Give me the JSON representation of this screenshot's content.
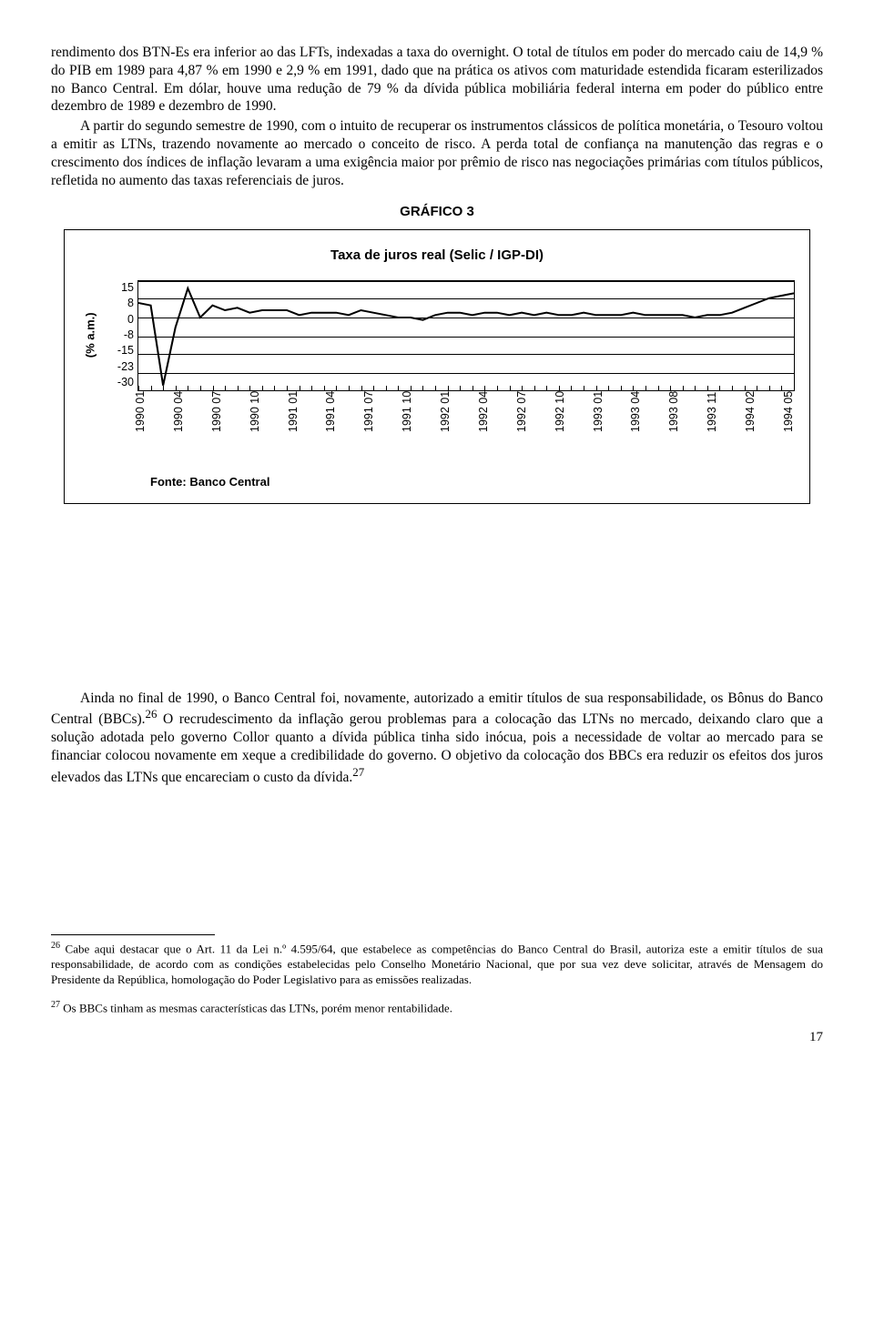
{
  "paragraphs": {
    "p1": "rendimento dos BTN-Es era inferior ao das LFTs, indexadas a taxa do overnight. O total de títulos em poder do mercado caiu de 14,9 % do PIB em 1989 para 4,87 % em 1990 e 2,9 % em 1991, dado que na prática os ativos com maturidade estendida ficaram esterilizados no Banco Central. Em dólar, houve uma redução de 79 % da dívida pública mobiliária federal interna em poder do público entre dezembro de 1989 e dezembro de 1990.",
    "p2": "A partir do segundo semestre de 1990, com o intuito de recuperar os instrumentos clássicos de política monetária, o Tesouro voltou a emitir as LTNs, trazendo novamente ao mercado o conceito de risco. A perda total de confiança na manutenção das regras e o crescimento dos índices de inflação levaram a uma exigência maior por prêmio de risco nas negociações primárias com títulos públicos, refletida no aumento das taxas referenciais de juros.",
    "p3": "Ainda no final de 1990, o Banco Central foi, novamente, autorizado a emitir títulos de sua responsabilidade, os Bônus do Banco Central (BBCs).",
    "p3_sup": "26",
    "p3b": " O recrudescimento da inflação gerou problemas para a colocação das LTNs no mercado, deixando claro que a solução adotada pelo governo Collor quanto a dívida pública tinha sido inócua, pois a necessidade de voltar ao mercado para se financiar colocou novamente em xeque a credibilidade do governo. O objetivo da colocação dos BBCs era reduzir os efeitos dos juros elevados das LTNs que encareciam o custo da dívida.",
    "p3_sup2": "27"
  },
  "chart": {
    "outer_title": "GRÁFICO 3",
    "inner_title": "Taxa de juros real (Selic / IGP-DI)",
    "ylabel": "(% a.m.)",
    "ylim": [
      -30,
      15
    ],
    "yticks": [
      "15",
      "8",
      "0",
      "-8",
      "-15",
      "-23",
      "-30"
    ],
    "xticks": [
      "1990 01",
      "1990 04",
      "1990 07",
      "1990 10",
      "1991 01",
      "1991 04",
      "1991 07",
      "1991 10",
      "1992 01",
      "1992 04",
      "1992 07",
      "1992 10",
      "1993 01",
      "1993 04",
      "1993 08",
      "1993 11",
      "1994 02",
      "1994 05"
    ],
    "values": [
      6,
      5,
      -28,
      -4,
      12,
      0,
      5,
      3,
      4,
      2,
      3,
      3,
      3,
      1,
      2,
      2,
      2,
      1,
      3,
      2,
      1,
      0,
      0,
      -1,
      1,
      2,
      2,
      1,
      2,
      2,
      1,
      2,
      1,
      2,
      1,
      1,
      2,
      1,
      1,
      1,
      2,
      1,
      1,
      1,
      1,
      0,
      1,
      1,
      2,
      4,
      6,
      8,
      9,
      10
    ],
    "line_color": "#000000",
    "line_width": 2,
    "grid_color": "#000000",
    "background_color": "#ffffff",
    "source": "Fonte: Banco Central"
  },
  "footnotes": {
    "f26_num": "26",
    "f26": " Cabe aqui destacar que o Art. 11 da Lei n.º 4.595/64, que estabelece as competências do Banco Central do Brasil, autoriza este a emitir títulos de sua responsabilidade, de acordo com as condições estabelecidas pelo Conselho Monetário Nacional, que por sua vez deve solicitar, através de Mensagem do Presidente da República, homologação do Poder Legislativo para as emissões realizadas.",
    "f27_num": "27",
    "f27": " Os BBCs tinham as mesmas características das LTNs, porém menor rentabilidade."
  },
  "page_number": "17"
}
